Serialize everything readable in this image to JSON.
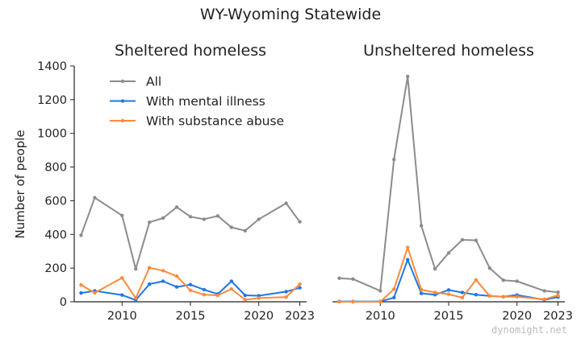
{
  "title": "WY-Wyoming Statewide",
  "ylabel": "Number of people",
  "watermark": "dynomight.net",
  "colors": {
    "all": "#8c8c8c",
    "mental": "#1f77e4",
    "substance": "#ff8a3d",
    "axis": "#222222"
  },
  "chart_data": [
    {
      "type": "line",
      "title": "Sheltered homeless",
      "ylim": [
        0,
        1400
      ],
      "yticks": [
        0,
        200,
        400,
        600,
        800,
        1000,
        1200,
        1400
      ],
      "xlim": [
        2006.5,
        2023.5
      ],
      "xticks": [
        2010,
        2015,
        2020,
        2023
      ],
      "legend": "top-left",
      "x": [
        2007,
        2008,
        2010,
        2011,
        2012,
        2013,
        2014,
        2015,
        2016,
        2017,
        2018,
        2019,
        2020,
        2022,
        2023
      ],
      "series": [
        {
          "name": "All",
          "key": "all",
          "values": [
            395,
            618,
            512,
            195,
            472,
            497,
            562,
            505,
            490,
            510,
            442,
            422,
            490,
            585,
            475
          ]
        },
        {
          "name": "With mental illness",
          "key": "mental",
          "values": [
            52,
            65,
            40,
            10,
            105,
            122,
            88,
            102,
            72,
            46,
            122,
            38,
            36,
            60,
            83
          ]
        },
        {
          "name": "With substance abuse",
          "key": "substance",
          "values": [
            100,
            53,
            142,
            22,
            202,
            185,
            152,
            68,
            42,
            38,
            76,
            12,
            22,
            28,
            105
          ]
        }
      ]
    },
    {
      "type": "line",
      "title": "Unsheltered homeless",
      "ylim": [
        0,
        1400
      ],
      "xlim": [
        2006.5,
        2023.5
      ],
      "xticks": [
        2010,
        2015,
        2020,
        2023
      ],
      "x": [
        2007,
        2008,
        2010,
        2011,
        2012,
        2013,
        2014,
        2015,
        2016,
        2017,
        2018,
        2019,
        2020,
        2022,
        2023
      ],
      "series": [
        {
          "name": "All",
          "key": "all",
          "values": [
            140,
            135,
            65,
            845,
            1338,
            452,
            195,
            290,
            368,
            365,
            200,
            128,
            122,
            65,
            57
          ]
        },
        {
          "name": "With mental illness",
          "key": "mental",
          "values": [
            2,
            2,
            2,
            25,
            250,
            50,
            42,
            70,
            55,
            42,
            35,
            30,
            40,
            12,
            28
          ]
        },
        {
          "name": "With substance abuse",
          "key": "substance",
          "values": [
            0,
            0,
            0,
            75,
            323,
            72,
            55,
            45,
            25,
            130,
            35,
            30,
            30,
            15,
            38
          ]
        }
      ]
    }
  ]
}
